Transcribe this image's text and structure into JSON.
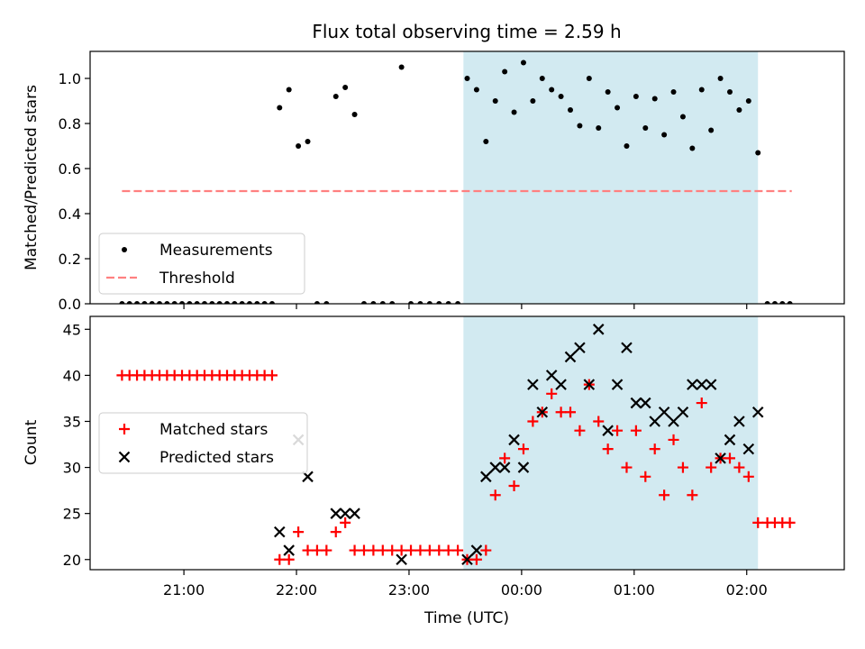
{
  "figure": {
    "title": "Flux total observing time = 2.59 h"
  },
  "highlight": {
    "x_start": "23:29",
    "x_end": "02:06",
    "color": "#add8e6"
  },
  "x_axis": {
    "label": "Time (UTC)",
    "range": [
      "20:10",
      "02:52"
    ],
    "ticks": [
      "21:00",
      "22:00",
      "23:00",
      "00:00",
      "01:00",
      "02:00"
    ]
  },
  "chart_data": [
    {
      "type": "scatter",
      "ylabel": "Matched/Predicted stars",
      "ylim": [
        0,
        1.12
      ],
      "yticks": [
        "0.0",
        "0.2",
        "0.4",
        "0.6",
        "0.8",
        "1.0"
      ],
      "legend": {
        "position": "lower-left",
        "entries": [
          "Measurements",
          "Threshold"
        ]
      },
      "threshold": {
        "name": "Threshold",
        "value": 0.5,
        "x_start": "20:27",
        "x_end": "02:24",
        "color": "#ff8080",
        "style": "dashed"
      },
      "series": [
        {
          "name": "Measurements",
          "marker": "dot",
          "color": "#000000",
          "points": [
            [
              "20:27",
              0
            ],
            [
              "20:31",
              0
            ],
            [
              "20:35",
              0
            ],
            [
              "20:39",
              0
            ],
            [
              "20:43",
              0
            ],
            [
              "20:47",
              0
            ],
            [
              "20:51",
              0
            ],
            [
              "20:55",
              0
            ],
            [
              "20:59",
              0
            ],
            [
              "21:03",
              0
            ],
            [
              "21:07",
              0
            ],
            [
              "21:11",
              0
            ],
            [
              "21:15",
              0
            ],
            [
              "21:19",
              0
            ],
            [
              "21:23",
              0
            ],
            [
              "21:27",
              0
            ],
            [
              "21:31",
              0
            ],
            [
              "21:35",
              0
            ],
            [
              "21:39",
              0
            ],
            [
              "21:43",
              0
            ],
            [
              "21:47",
              0
            ],
            [
              "21:51",
              0.87
            ],
            [
              "21:56",
              0.95
            ],
            [
              "22:01",
              0.7
            ],
            [
              "22:06",
              0.72
            ],
            [
              "22:11",
              0
            ],
            [
              "22:16",
              0
            ],
            [
              "22:21",
              0.92
            ],
            [
              "22:26",
              0.96
            ],
            [
              "22:31",
              0.84
            ],
            [
              "22:36",
              0
            ],
            [
              "22:41",
              0
            ],
            [
              "22:46",
              0
            ],
            [
              "22:51",
              0
            ],
            [
              "22:56",
              1.05
            ],
            [
              "23:01",
              0
            ],
            [
              "23:06",
              0
            ],
            [
              "23:11",
              0
            ],
            [
              "23:16",
              0
            ],
            [
              "23:21",
              0
            ],
            [
              "23:26",
              0
            ],
            [
              "23:31",
              1.0
            ],
            [
              "23:36",
              0.95
            ],
            [
              "23:41",
              0.72
            ],
            [
              "23:46",
              0.9
            ],
            [
              "23:51",
              1.03
            ],
            [
              "23:56",
              0.85
            ],
            [
              "00:01",
              1.07
            ],
            [
              "00:06",
              0.9
            ],
            [
              "00:11",
              1.0
            ],
            [
              "00:16",
              0.95
            ],
            [
              "00:21",
              0.92
            ],
            [
              "00:26",
              0.86
            ],
            [
              "00:31",
              0.79
            ],
            [
              "00:36",
              1.0
            ],
            [
              "00:41",
              0.78
            ],
            [
              "00:46",
              0.94
            ],
            [
              "00:51",
              0.87
            ],
            [
              "00:56",
              0.7
            ],
            [
              "01:01",
              0.92
            ],
            [
              "01:06",
              0.78
            ],
            [
              "01:11",
              0.91
            ],
            [
              "01:16",
              0.75
            ],
            [
              "01:21",
              0.94
            ],
            [
              "01:26",
              0.83
            ],
            [
              "01:31",
              0.69
            ],
            [
              "01:36",
              0.95
            ],
            [
              "01:41",
              0.77
            ],
            [
              "01:46",
              1.0
            ],
            [
              "01:51",
              0.94
            ],
            [
              "01:56",
              0.86
            ],
            [
              "02:01",
              0.9
            ],
            [
              "02:06",
              0.67
            ],
            [
              "02:11",
              0
            ],
            [
              "02:15",
              0
            ],
            [
              "02:19",
              0
            ],
            [
              "02:23",
              0
            ]
          ]
        }
      ]
    },
    {
      "type": "scatter",
      "ylabel": "Count",
      "ylim": [
        18.9,
        46.4
      ],
      "yticks": [
        "20",
        "25",
        "30",
        "35",
        "40",
        "45"
      ],
      "legend": {
        "position": "center-left",
        "entries": [
          "Matched stars",
          "Predicted stars"
        ]
      },
      "series": [
        {
          "name": "Matched stars",
          "marker": "plus",
          "color": "#ff0000",
          "points": [
            [
              "20:27",
              40
            ],
            [
              "20:31",
              40
            ],
            [
              "20:35",
              40
            ],
            [
              "20:39",
              40
            ],
            [
              "20:43",
              40
            ],
            [
              "20:47",
              40
            ],
            [
              "20:51",
              40
            ],
            [
              "20:55",
              40
            ],
            [
              "20:59",
              40
            ],
            [
              "21:03",
              40
            ],
            [
              "21:07",
              40
            ],
            [
              "21:11",
              40
            ],
            [
              "21:15",
              40
            ],
            [
              "21:19",
              40
            ],
            [
              "21:23",
              40
            ],
            [
              "21:27",
              40
            ],
            [
              "21:31",
              40
            ],
            [
              "21:35",
              40
            ],
            [
              "21:39",
              40
            ],
            [
              "21:43",
              40
            ],
            [
              "21:47",
              40
            ],
            [
              "21:51",
              20
            ],
            [
              "21:56",
              20
            ],
            [
              "22:01",
              23
            ],
            [
              "22:06",
              21
            ],
            [
              "22:11",
              21
            ],
            [
              "22:16",
              21
            ],
            [
              "22:21",
              23
            ],
            [
              "22:26",
              24
            ],
            [
              "22:31",
              21
            ],
            [
              "22:36",
              21
            ],
            [
              "22:41",
              21
            ],
            [
              "22:46",
              21
            ],
            [
              "22:51",
              21
            ],
            [
              "22:56",
              21
            ],
            [
              "23:01",
              21
            ],
            [
              "23:06",
              21
            ],
            [
              "23:11",
              21
            ],
            [
              "23:16",
              21
            ],
            [
              "23:21",
              21
            ],
            [
              "23:26",
              21
            ],
            [
              "23:31",
              20
            ],
            [
              "23:36",
              20
            ],
            [
              "23:41",
              21
            ],
            [
              "23:46",
              27
            ],
            [
              "23:51",
              31
            ],
            [
              "23:56",
              28
            ],
            [
              "00:01",
              32
            ],
            [
              "00:06",
              35
            ],
            [
              "00:11",
              36
            ],
            [
              "00:16",
              38
            ],
            [
              "00:21",
              36
            ],
            [
              "00:26",
              36
            ],
            [
              "00:31",
              34
            ],
            [
              "00:36",
              39
            ],
            [
              "00:41",
              35
            ],
            [
              "00:46",
              32
            ],
            [
              "00:51",
              34
            ],
            [
              "00:56",
              30
            ],
            [
              "01:01",
              34
            ],
            [
              "01:06",
              29
            ],
            [
              "01:11",
              32
            ],
            [
              "01:16",
              27
            ],
            [
              "01:21",
              33
            ],
            [
              "01:26",
              30
            ],
            [
              "01:31",
              27
            ],
            [
              "01:36",
              37
            ],
            [
              "01:41",
              30
            ],
            [
              "01:46",
              31
            ],
            [
              "01:51",
              31
            ],
            [
              "01:56",
              30
            ],
            [
              "02:01",
              29
            ],
            [
              "02:06",
              24
            ],
            [
              "02:11",
              24
            ],
            [
              "02:15",
              24
            ],
            [
              "02:19",
              24
            ],
            [
              "02:23",
              24
            ]
          ]
        },
        {
          "name": "Predicted stars",
          "marker": "x",
          "color": "#000000",
          "points": [
            [
              "21:51",
              23
            ],
            [
              "21:56",
              21
            ],
            [
              "22:01",
              33
            ],
            [
              "22:06",
              29
            ],
            [
              "22:21",
              25
            ],
            [
              "22:26",
              25
            ],
            [
              "22:31",
              25
            ],
            [
              "22:56",
              20
            ],
            [
              "23:31",
              20
            ],
            [
              "23:36",
              21
            ],
            [
              "23:41",
              29
            ],
            [
              "23:46",
              30
            ],
            [
              "23:51",
              30
            ],
            [
              "23:56",
              33
            ],
            [
              "00:01",
              30
            ],
            [
              "00:06",
              39
            ],
            [
              "00:11",
              36
            ],
            [
              "00:16",
              40
            ],
            [
              "00:21",
              39
            ],
            [
              "00:26",
              42
            ],
            [
              "00:31",
              43
            ],
            [
              "00:36",
              39
            ],
            [
              "00:41",
              45
            ],
            [
              "00:46",
              34
            ],
            [
              "00:51",
              39
            ],
            [
              "00:56",
              43
            ],
            [
              "01:01",
              37
            ],
            [
              "01:06",
              37
            ],
            [
              "01:11",
              35
            ],
            [
              "01:16",
              36
            ],
            [
              "01:21",
              35
            ],
            [
              "01:26",
              36
            ],
            [
              "01:31",
              39
            ],
            [
              "01:36",
              39
            ],
            [
              "01:41",
              39
            ],
            [
              "01:46",
              31
            ],
            [
              "01:51",
              33
            ],
            [
              "01:56",
              35
            ],
            [
              "02:01",
              32
            ],
            [
              "02:06",
              36
            ]
          ]
        }
      ]
    }
  ]
}
